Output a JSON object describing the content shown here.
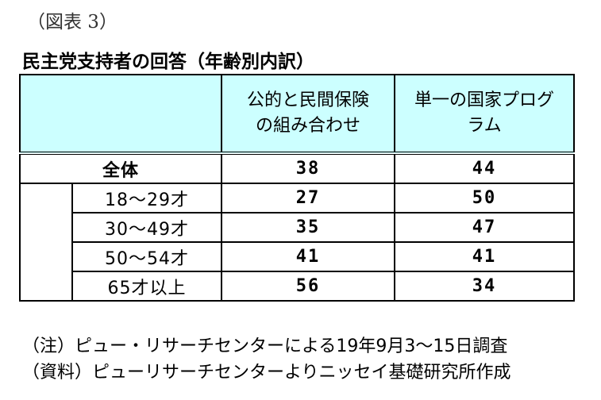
{
  "figure_label": "（図表 3）",
  "title": "民主党支持者の回答（年齢別内訳）",
  "table": {
    "columns": [
      "公的と民間保険の組み合わせ",
      "単一の国家プログラム"
    ],
    "column_lines": [
      [
        "公的と民間保険",
        "の組み合わせ"
      ],
      [
        "単一の国家プログ",
        "ラム"
      ]
    ],
    "total": {
      "label": "全体",
      "values": [
        "38",
        "44"
      ]
    },
    "rows": [
      {
        "label": "18～29才",
        "values": [
          "27",
          "50"
        ]
      },
      {
        "label": "30～49才",
        "values": [
          "35",
          "47"
        ]
      },
      {
        "label": "50～54才",
        "values": [
          "41",
          "41"
        ]
      },
      {
        "label": "65才以上",
        "values": [
          "56",
          "34"
        ]
      }
    ]
  },
  "notes": [
    "（注）ピュー・リサーチセンターによる19年9月3～15日調査",
    "（資料）ピューリサーチセンターよりニッセイ基礎研究所作成"
  ],
  "colors": {
    "header_background": "#ccffff",
    "border": "#000000",
    "figure_label": "#333333"
  }
}
